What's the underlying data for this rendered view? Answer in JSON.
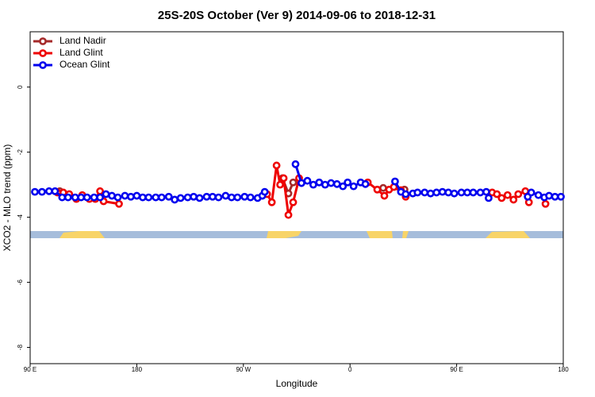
{
  "chart_data": {
    "type": "line",
    "title": "25S-20S October (Ver 9)   2014-09-06 to 2018-12-31",
    "x_label": "Longitude",
    "y_label": "XCO2 - MLO trend (ppm)",
    "xlim": [
      90,
      540
    ],
    "xticks": [
      {
        "value": 90,
        "label": "90 E"
      },
      {
        "value": 180,
        "label": "180"
      },
      {
        "value": 270,
        "label": "90 W"
      },
      {
        "value": 360,
        "label": "0"
      },
      {
        "value": 450,
        "label": "90 E"
      },
      {
        "value": 540,
        "label": "180"
      }
    ],
    "ylim": [
      -8.5,
      1.7
    ],
    "yticks": [
      0,
      -2,
      -4,
      -6,
      -8
    ],
    "legend": "top-left",
    "series": [
      {
        "name": "Land Nadir",
        "color": "#a52a2a",
        "x": [
          115,
          null,
          303,
          308,
          312,
          null,
          388,
          406
        ],
        "values": [
          -3.2,
          null,
          -2.8,
          -3.27,
          -2.93,
          null,
          -3.1,
          -3.15
        ]
      },
      {
        "name": "Land Glint",
        "color": "#ee0000",
        "x": [
          113,
          118,
          123,
          129,
          134,
          140,
          145,
          149,
          152,
          165,
          null,
          290,
          294,
          298,
          301,
          304,
          308,
          312,
          317,
          null,
          375,
          383,
          389,
          393,
          397,
          403,
          407,
          null,
          480,
          484,
          488,
          493,
          498,
          502,
          508,
          511,
          null,
          525
        ],
        "values": [
          -3.24,
          -3.24,
          -3.29,
          -3.44,
          -3.32,
          -3.44,
          -3.44,
          -3.2,
          -3.51,
          -3.59,
          null,
          -3.29,
          -3.54,
          -2.41,
          -3.0,
          -2.8,
          -3.93,
          -3.54,
          -2.8,
          null,
          -2.93,
          -3.15,
          -3.34,
          -3.15,
          -3.07,
          -3.17,
          -3.37,
          null,
          -3.24,
          -3.29,
          -3.41,
          -3.32,
          -3.46,
          -3.29,
          -3.2,
          -3.54,
          null,
          -3.59
        ]
      },
      {
        "name": "Ocean Glint",
        "color": "#0000ee",
        "x": [
          94,
          100,
          106,
          111,
          117,
          122,
          128,
          133,
          138,
          144,
          149,
          154,
          159,
          164,
          170,
          175,
          180,
          185,
          190,
          196,
          201,
          207,
          212,
          217,
          223,
          228,
          233,
          239,
          244,
          249,
          255,
          260,
          265,
          271,
          276,
          282,
          286,
          288,
          null,
          314,
          319,
          324,
          329,
          334,
          339,
          344,
          349,
          354,
          358,
          363,
          369,
          373,
          null,
          398,
          403,
          407,
          413,
          417,
          423,
          428,
          433,
          438,
          443,
          448,
          454,
          459,
          464,
          470,
          475,
          477,
          null,
          510,
          513,
          519,
          524,
          528,
          533,
          538
        ],
        "values": [
          -3.22,
          -3.22,
          -3.2,
          -3.2,
          -3.39,
          -3.39,
          -3.39,
          -3.39,
          -3.39,
          -3.39,
          -3.39,
          -3.29,
          -3.34,
          -3.39,
          -3.34,
          -3.37,
          -3.34,
          -3.39,
          -3.39,
          -3.39,
          -3.39,
          -3.37,
          -3.46,
          -3.41,
          -3.39,
          -3.37,
          -3.41,
          -3.37,
          -3.37,
          -3.39,
          -3.34,
          -3.39,
          -3.39,
          -3.37,
          -3.39,
          -3.41,
          -3.34,
          -3.22,
          null,
          -2.37,
          -2.95,
          -2.88,
          -3.0,
          -2.93,
          -3.0,
          -2.95,
          -2.98,
          -3.05,
          -2.93,
          -3.05,
          -2.93,
          -2.98,
          null,
          -2.9,
          -3.22,
          -3.29,
          -3.27,
          -3.24,
          -3.24,
          -3.27,
          -3.24,
          -3.22,
          -3.24,
          -3.27,
          -3.24,
          -3.24,
          -3.24,
          -3.24,
          -3.22,
          -3.41,
          null,
          -3.37,
          -3.24,
          -3.32,
          -3.39,
          -3.34,
          -3.37,
          -3.37
        ]
      }
    ]
  }
}
